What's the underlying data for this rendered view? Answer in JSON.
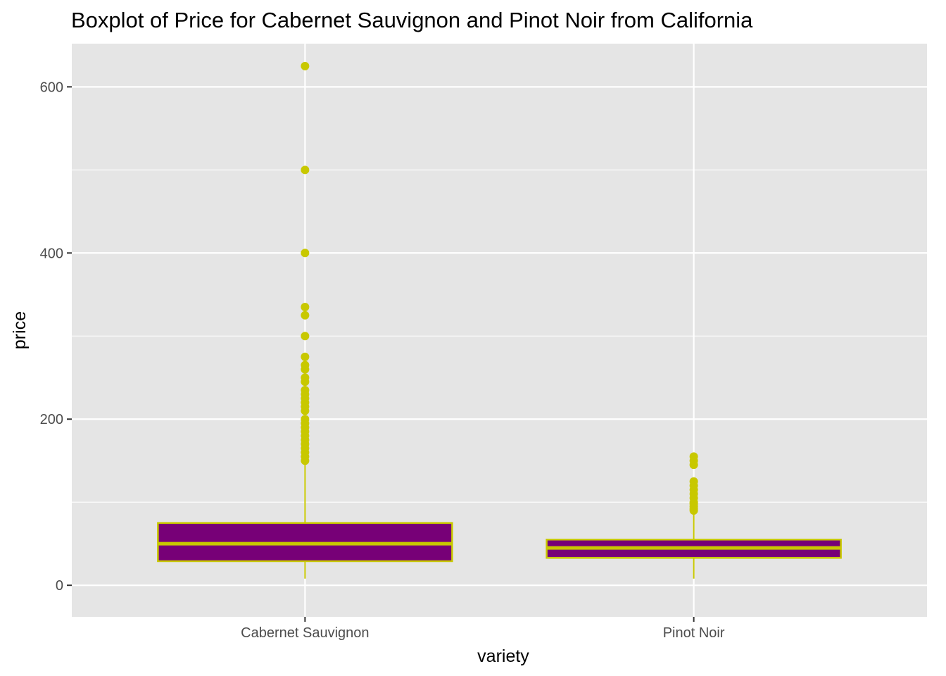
{
  "chart_data": {
    "type": "boxplot",
    "title": "Boxplot of Price for Cabernet Sauvignon and Pinot Noir from California",
    "xlabel": "variety",
    "ylabel": "price",
    "categories": [
      "Cabernet Sauvignon",
      "Pinot Noir"
    ],
    "ylim": [
      -38,
      652
    ],
    "yticks": [
      0,
      200,
      400,
      600
    ],
    "ytick_labels": [
      "0",
      "200",
      "400",
      "600"
    ],
    "grid": true,
    "colors": {
      "panel_background": "#e5e5e5",
      "grid": "#ffffff",
      "box_fill": "#770077",
      "box_outline": "#c8c800",
      "outlier": "#c8c800"
    },
    "boxes": [
      {
        "category": "Cabernet Sauvignon",
        "min": 8,
        "q1": 29,
        "median": 50,
        "q3": 75,
        "max": 148,
        "outliers": [
          625,
          500,
          400,
          335,
          325,
          300,
          275,
          265,
          260,
          250,
          245,
          235,
          230,
          225,
          220,
          215,
          210,
          200,
          195,
          190,
          185,
          180,
          175,
          170,
          165,
          160,
          155,
          150
        ]
      },
      {
        "category": "Pinot Noir",
        "min": 8,
        "q1": 33,
        "median": 45,
        "q3": 55,
        "max": 88,
        "outliers": [
          155,
          150,
          145,
          125,
          120,
          115,
          110,
          105,
          100,
          98,
          95,
          92,
          90
        ]
      }
    ]
  }
}
